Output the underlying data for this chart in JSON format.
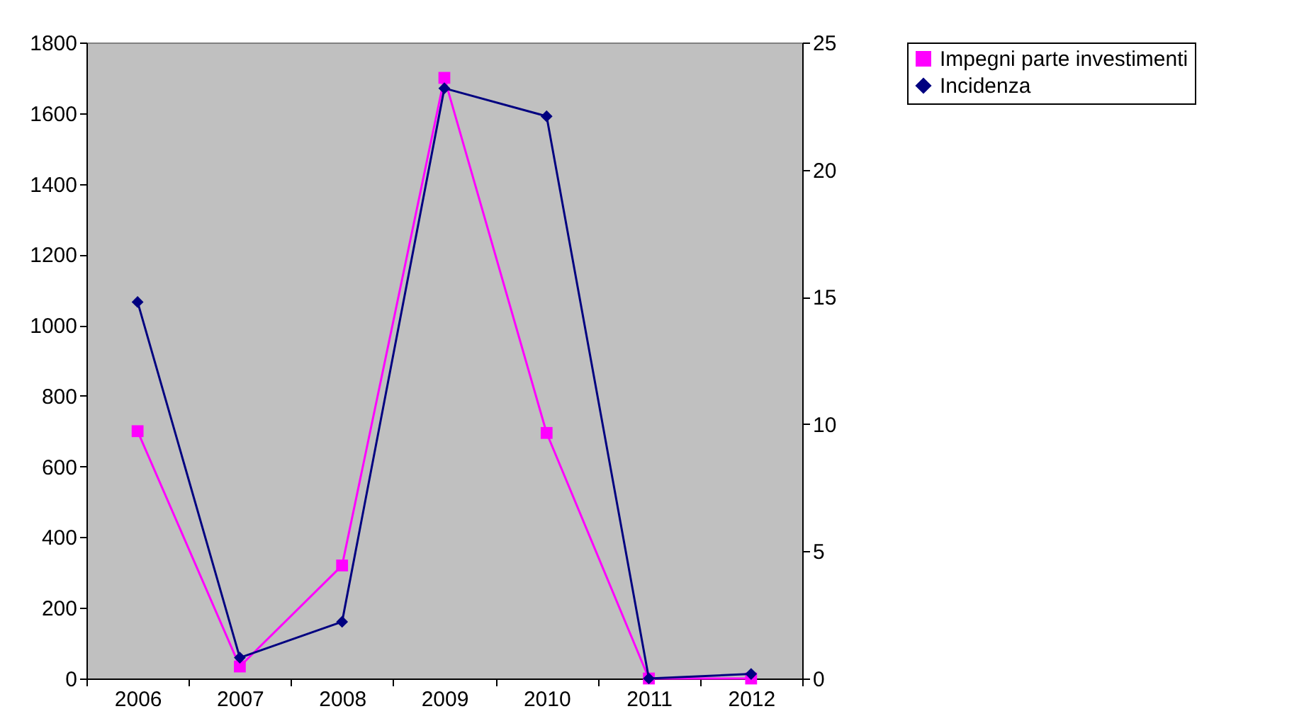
{
  "chart_data": {
    "type": "line",
    "categories": [
      "2006",
      "2007",
      "2008",
      "2009",
      "2010",
      "2011",
      "2012"
    ],
    "series": [
      {
        "name": "Impegni parte investimenti",
        "color": "#ff00ff",
        "marker": "square",
        "values": [
          700,
          34,
          320,
          1700,
          695,
          0,
          0
        ]
      },
      {
        "name": "Incidenza",
        "color": "#000080",
        "marker": "diamond",
        "axis": "y2",
        "values": [
          14.8,
          0.82,
          2.23,
          23.2,
          22.1,
          0,
          0.18
        ]
      }
    ],
    "ylim": [
      0,
      1800
    ],
    "yticks": [
      0,
      200,
      400,
      600,
      800,
      1000,
      1200,
      1400,
      1600,
      1800
    ],
    "y2lim": [
      0,
      25
    ],
    "y2ticks": [
      0,
      5,
      10,
      15,
      20,
      25
    ],
    "grid": false,
    "legend": "right",
    "line_style": "solid"
  }
}
